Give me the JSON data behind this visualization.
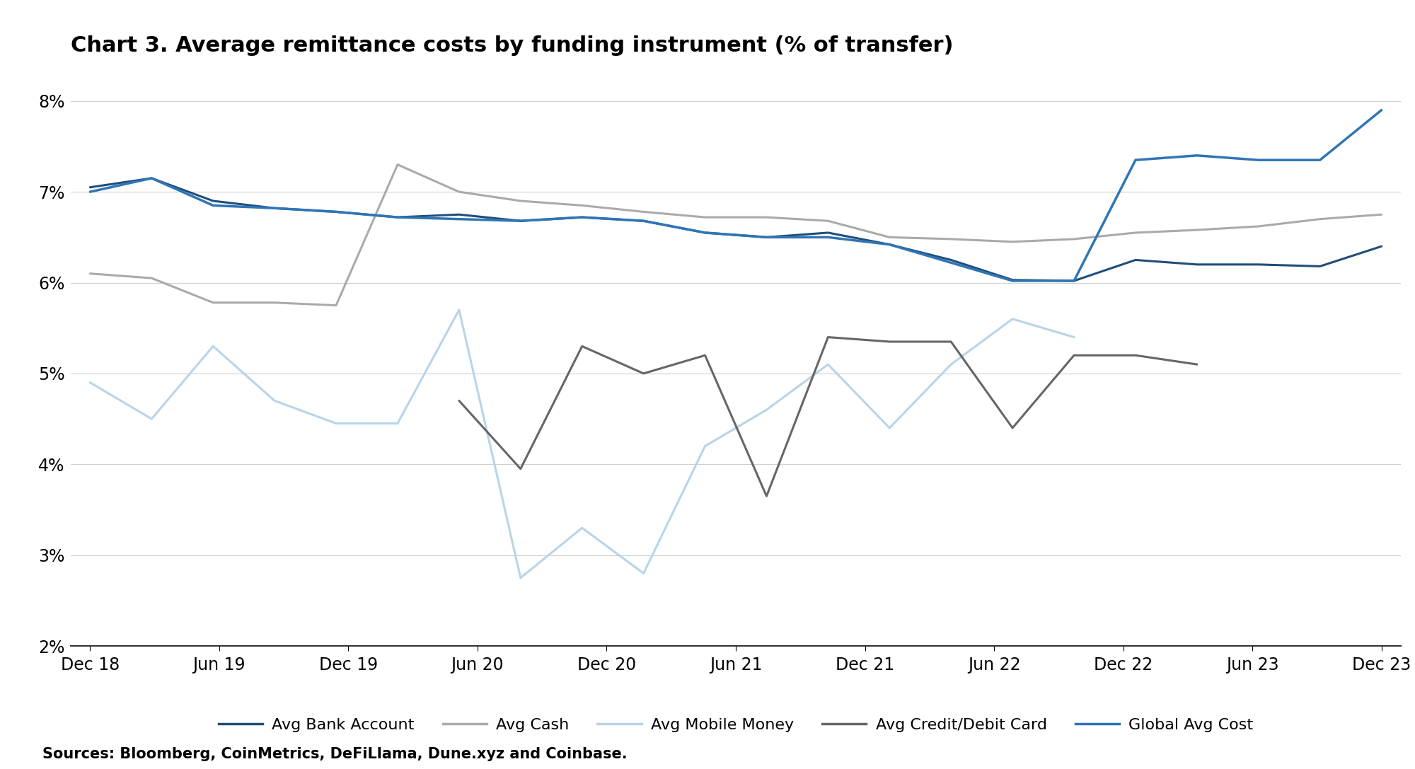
{
  "title": "Chart 3. Average remittance costs by funding instrument (% of transfer)",
  "source": "Sources: Bloomberg, CoinMetrics, DeFiLlama, Dune.xyz and Coinbase.",
  "ylim": [
    2.0,
    8.35
  ],
  "yticks": [
    2,
    3,
    4,
    5,
    6,
    7,
    8
  ],
  "x_labels": [
    "Dec 18",
    "Jun 19",
    "Dec 19",
    "Jun 20",
    "Dec 20",
    "Jun 21",
    "Dec 21",
    "Jun 22",
    "Dec 22",
    "Jun 23",
    "Dec 23"
  ],
  "x_positions": [
    0,
    2,
    4,
    6,
    8,
    10,
    12,
    14,
    16,
    18,
    20
  ],
  "n_points": 22,
  "series": {
    "avg_bank_account": {
      "label": "Avg Bank Account",
      "color": "#1F4E79",
      "linewidth": 2.2,
      "values": [
        7.05,
        7.15,
        6.9,
        6.82,
        6.78,
        6.72,
        6.75,
        6.68,
        6.72,
        6.68,
        6.55,
        6.5,
        6.55,
        6.42,
        6.25,
        6.03,
        6.02,
        6.25,
        6.2,
        6.2,
        6.18,
        6.4
      ]
    },
    "avg_cash": {
      "label": "Avg Cash",
      "color": "#AAAAAA",
      "linewidth": 2.2,
      "values": [
        6.1,
        6.05,
        5.78,
        5.78,
        5.75,
        7.3,
        7.0,
        6.9,
        6.85,
        6.78,
        6.72,
        6.72,
        6.68,
        6.5,
        6.48,
        6.45,
        6.48,
        6.55,
        6.58,
        6.62,
        6.7,
        6.75
      ]
    },
    "avg_mobile_money": {
      "label": "Avg Mobile Money",
      "color": "#B8D4E8",
      "linewidth": 2.2,
      "values": [
        4.9,
        4.5,
        5.3,
        4.7,
        4.45,
        4.45,
        5.7,
        2.75,
        3.3,
        2.8,
        4.2,
        4.6,
        5.1,
        4.4,
        5.1,
        5.6,
        5.4,
        null,
        null,
        null,
        null,
        null
      ]
    },
    "avg_credit_debit": {
      "label": "Avg Credit/Debit Card",
      "color": "#666666",
      "linewidth": 2.2,
      "values": [
        null,
        null,
        null,
        null,
        null,
        null,
        4.7,
        3.95,
        5.3,
        5.0,
        5.2,
        3.65,
        5.4,
        5.35,
        5.35,
        4.4,
        5.2,
        5.2,
        5.1,
        null,
        null,
        null
      ]
    },
    "global_avg_cost": {
      "label": "Global Avg Cost",
      "color": "#2F75B6",
      "linewidth": 2.5,
      "values": [
        7.0,
        7.15,
        6.85,
        6.82,
        6.78,
        6.72,
        6.7,
        6.68,
        6.72,
        6.68,
        6.55,
        6.5,
        6.5,
        6.42,
        6.22,
        6.02,
        6.02,
        7.35,
        7.4,
        7.35,
        7.35,
        7.9
      ]
    }
  }
}
